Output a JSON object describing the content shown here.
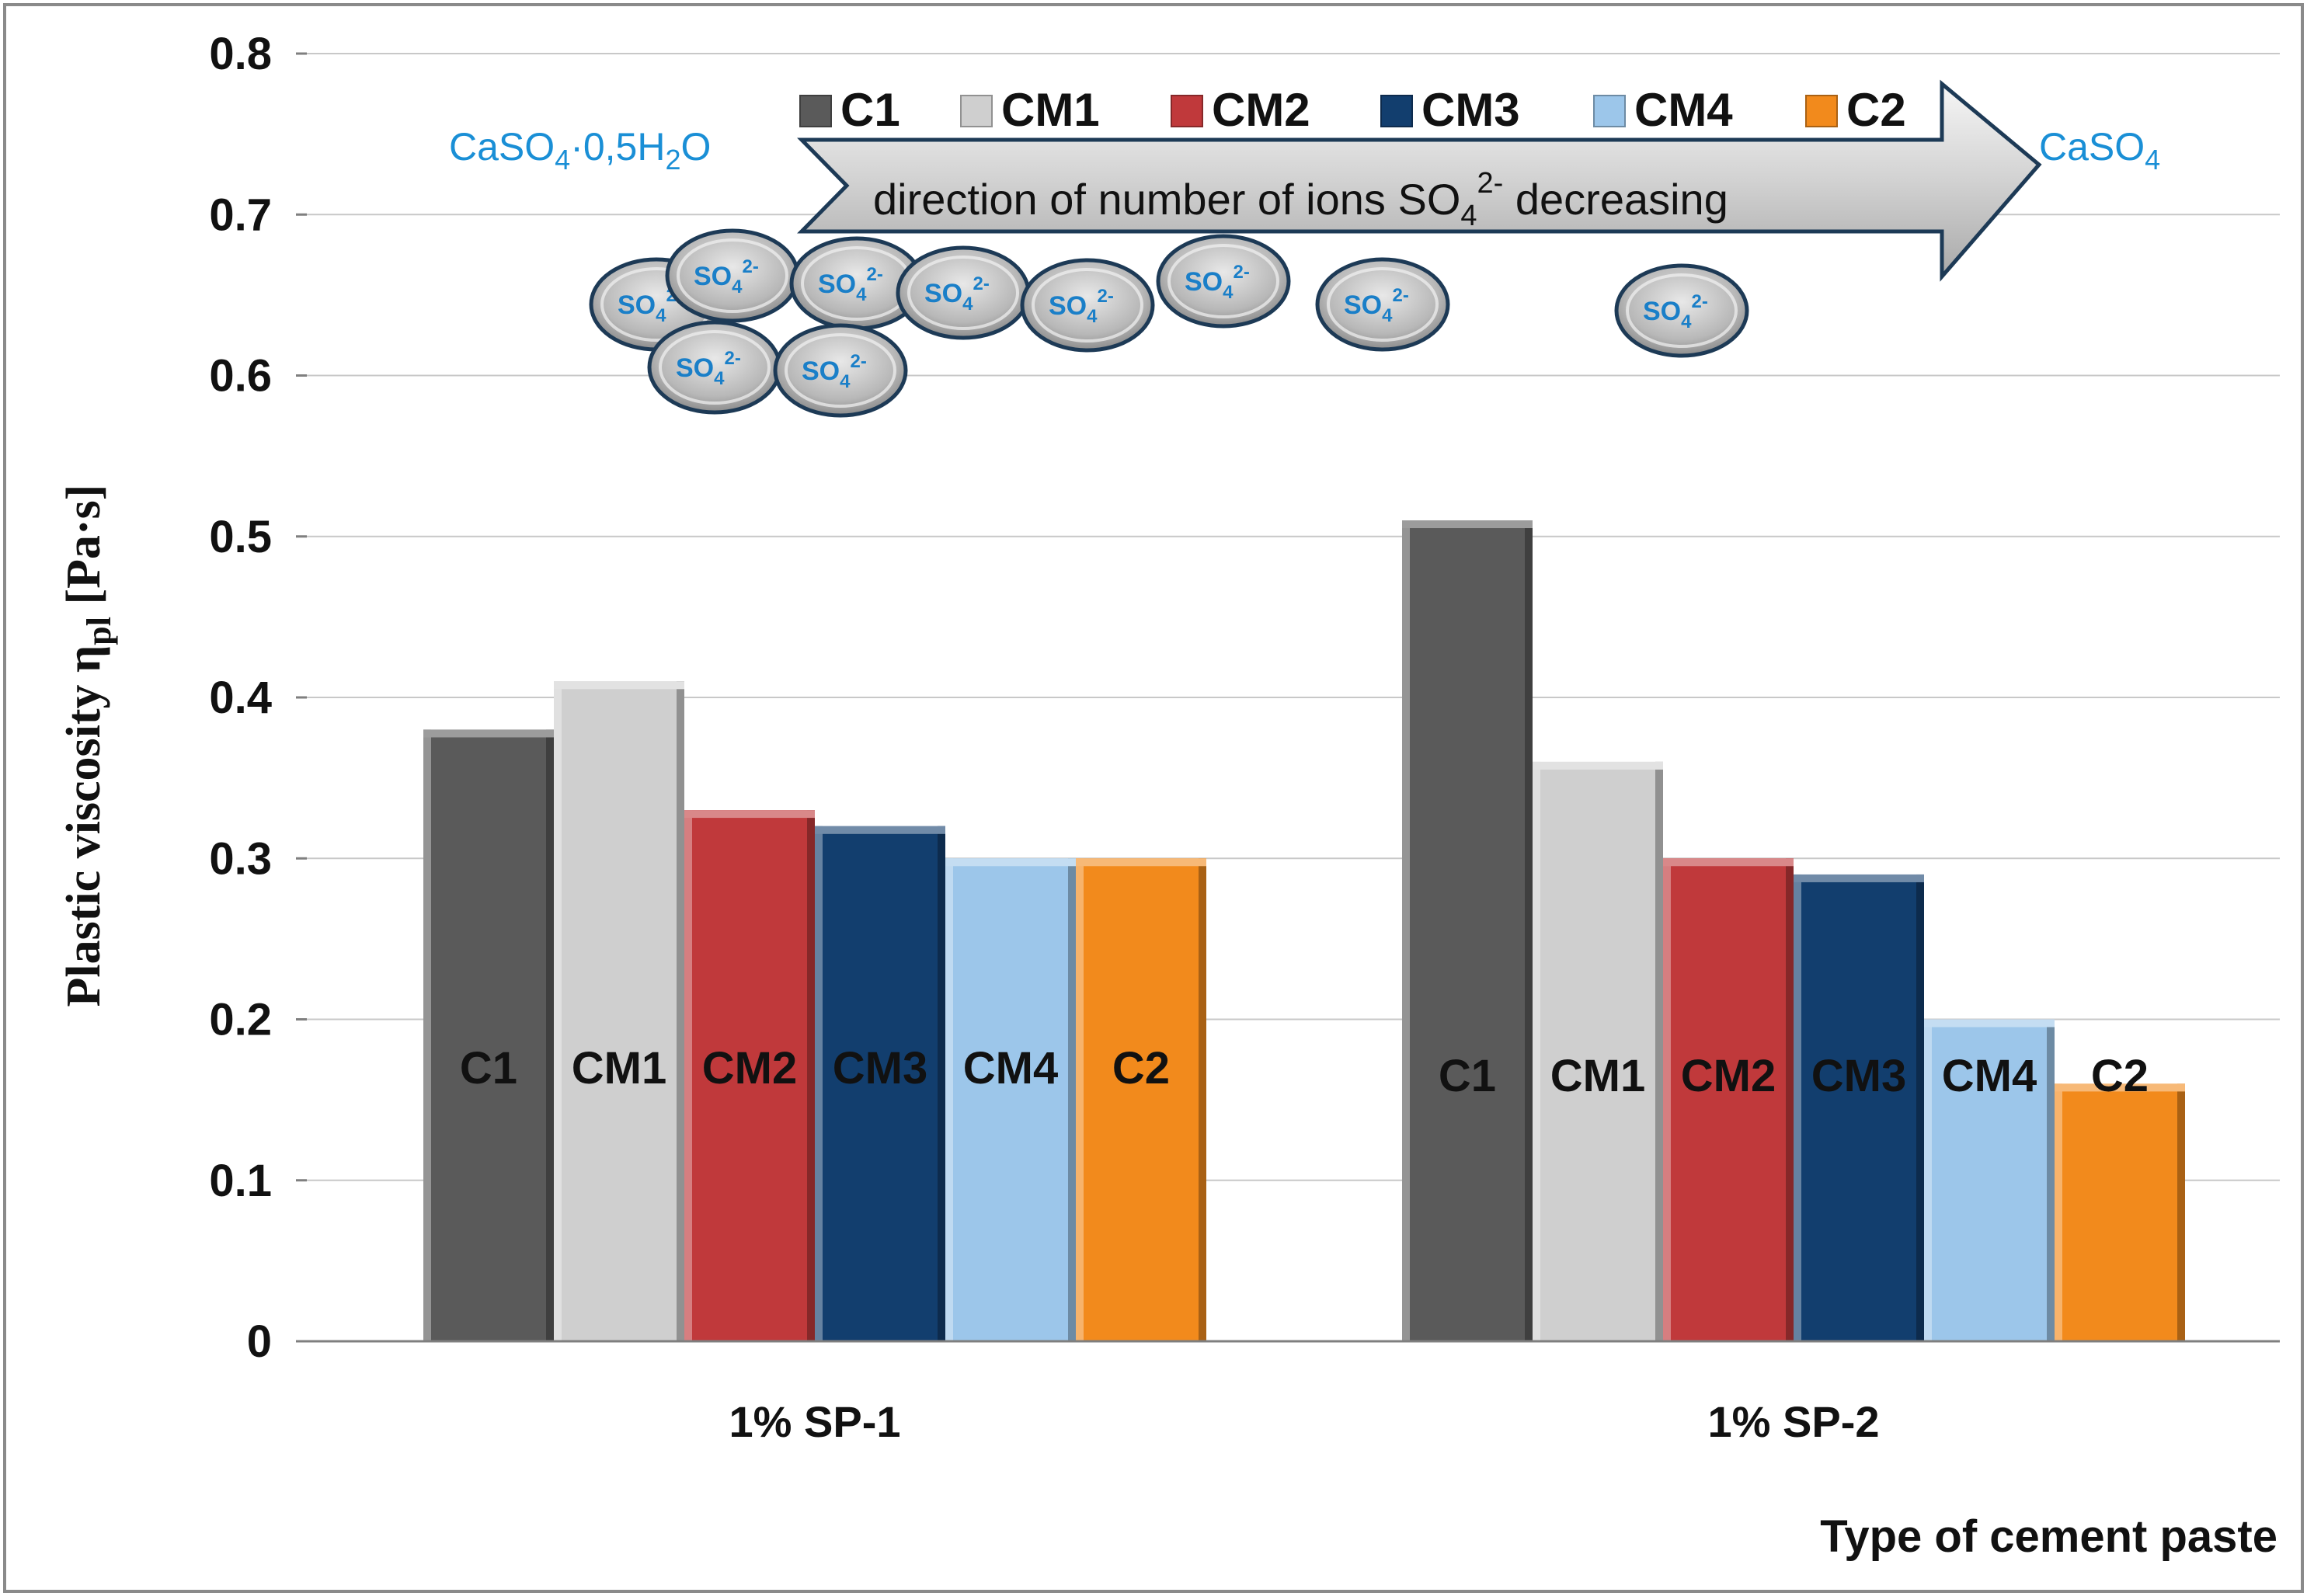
{
  "chart_data": {
    "type": "bar",
    "title": "",
    "ylabel": {
      "main": "Plastic viscosity η",
      "subscript": "pl",
      "unit": " [Pa·s]"
    },
    "xlabel": "Type of cement paste",
    "ylim": [
      0,
      0.8
    ],
    "yticks": [
      "0",
      "0.1",
      "0.2",
      "0.3",
      "0.4",
      "0.5",
      "0.6",
      "0.7",
      "0.8"
    ],
    "ytick_values": [
      0,
      0.1,
      0.2,
      0.3,
      0.4,
      0.5,
      0.6,
      0.7,
      0.8
    ],
    "grid": true,
    "legend_position": "top",
    "categories": [
      "1% SP-1",
      "1% SP-2"
    ],
    "series": [
      {
        "name": "C1",
        "values": [
          0.38,
          0.51
        ],
        "color": "#5a5a5a"
      },
      {
        "name": "CM1",
        "values": [
          0.41,
          0.36
        ],
        "color": "#cfcfcf"
      },
      {
        "name": "CM2",
        "values": [
          0.33,
          0.3
        ],
        "color": "#c0393b"
      },
      {
        "name": "CM3",
        "values": [
          0.32,
          0.29
        ],
        "color": "#123e6e"
      },
      {
        "name": "CM4",
        "values": [
          0.3,
          0.2
        ],
        "color": "#9cc6ea"
      },
      {
        "name": "C2",
        "values": [
          0.3,
          0.16
        ],
        "color": "#f28a1c"
      }
    ],
    "bar_labels": [
      [
        "C1",
        "CM1",
        "CM2",
        "CM3",
        "CM4",
        "C2"
      ],
      [
        "C1",
        "CM1",
        "CM2",
        "CM3",
        "CM4",
        "C2"
      ]
    ],
    "annotations": {
      "left_chem": {
        "a": "CaSO",
        "a_sub": "4",
        "b": "·0,5H",
        "b_sub": "2",
        "c": "O"
      },
      "right_chem": {
        "a": "CaSO",
        "a_sub": "4"
      },
      "arrow_text": {
        "a": "direction of number of ions SO",
        "sub": "4",
        "sup": "2-",
        "b": " decreasing"
      },
      "ion": {
        "a": "SO",
        "sub": "4",
        "sup": "2-"
      },
      "ion_count": 10
    }
  }
}
